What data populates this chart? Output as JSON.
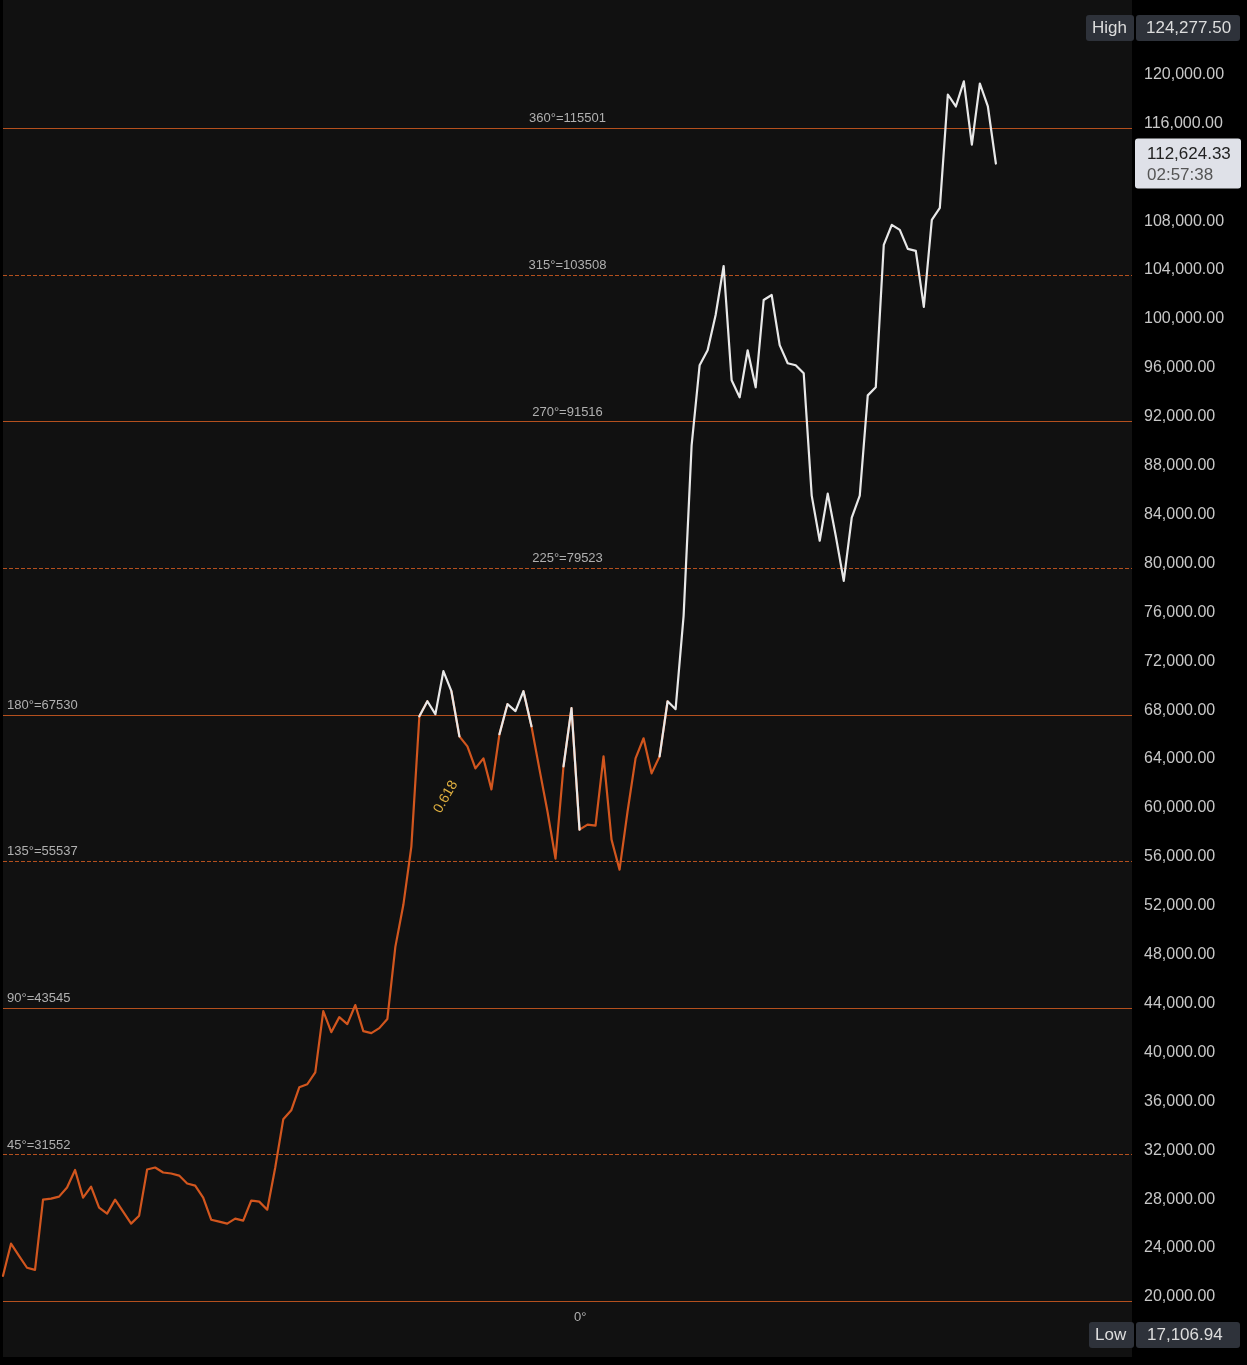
{
  "chart_data": {
    "type": "line",
    "categories": [
      null,
      null,
      null,
      null,
      null,
      null,
      null,
      null,
      null,
      null,
      null,
      null,
      null,
      null,
      null,
      null,
      null,
      null,
      null,
      null,
      null,
      null,
      null,
      null,
      null,
      null,
      null,
      null,
      null,
      null,
      null,
      null,
      null,
      null,
      null,
      null,
      null,
      null,
      null,
      null,
      null,
      null,
      null,
      null,
      null,
      null,
      null,
      null,
      null,
      null,
      null,
      null,
      null,
      null,
      null,
      null,
      null,
      null,
      null,
      null,
      null,
      null,
      null,
      null,
      null,
      null,
      null,
      null,
      null,
      null,
      null,
      null,
      null,
      null,
      null,
      null,
      null,
      null,
      null,
      null,
      null,
      null,
      null,
      null,
      null,
      null,
      null,
      null,
      null,
      null,
      null,
      null,
      null,
      null,
      null,
      null,
      null,
      null,
      null,
      null,
      null,
      null,
      null,
      null,
      null,
      null,
      null,
      null,
      null,
      null,
      null,
      null,
      null,
      null,
      null,
      null,
      null,
      null,
      null,
      null,
      null,
      null,
      null,
      null,
      null,
      null,
      null,
      null,
      null,
      null,
      null,
      null,
      null,
      null,
      null,
      null,
      null,
      null,
      null,
      null,
      null,
      null
    ],
    "series": [
      {
        "color": "#d2561e",
        "values": [
          21640,
          24270,
          23280,
          22300,
          22130,
          27870,
          27960,
          28120,
          28860,
          30300,
          28040,
          28940,
          27220,
          26730,
          27870,
          26890,
          25910,
          26560,
          30340,
          30500,
          30090,
          30010,
          29840,
          29190,
          29020,
          28040,
          26230,
          26070,
          25910,
          26320,
          26150,
          27790,
          27710,
          27050,
          30500,
          34440,
          35180,
          37060,
          37310,
          38290,
          43300,
          41570,
          42800,
          42230,
          43790,
          41660,
          41490,
          41900,
          42640,
          48550,
          51990,
          56750,
          67410,
          68640,
          null,
          null,
          69460,
          65770,
          64950,
          63150,
          63970,
          61430,
          65940,
          68400,
          null,
          69460,
          66590,
          63070,
          59620,
          55770,
          63310,
          68070,
          58140,
          58550,
          58470,
          64130,
          57320,
          54860,
          59620,
          63970,
          65610,
          62740,
          64130,
          68640,
          null,
          null,
          null,
          null,
          null,
          null,
          null,
          null,
          null,
          null,
          null,
          null,
          null,
          null,
          null,
          null,
          null,
          null,
          null,
          null,
          null,
          null,
          null,
          null,
          null,
          null,
          null,
          null,
          null,
          null,
          null,
          null,
          null,
          null,
          null,
          null,
          null,
          null,
          null,
          null,
          null,
          null,
          null,
          null,
          null,
          null,
          null,
          null,
          null,
          null,
          null,
          null,
          null,
          null,
          null,
          null,
          null,
          null
        ]
      },
      {
        "color": "#e8e8e8",
        "values": [
          null,
          null,
          null,
          null,
          null,
          null,
          null,
          null,
          null,
          null,
          null,
          null,
          null,
          null,
          null,
          null,
          null,
          null,
          null,
          null,
          null,
          null,
          null,
          null,
          null,
          null,
          null,
          null,
          null,
          null,
          null,
          null,
          null,
          null,
          null,
          null,
          null,
          null,
          null,
          null,
          null,
          null,
          null,
          null,
          null,
          null,
          null,
          null,
          null,
          null,
          null,
          null,
          67410,
          68640,
          67580,
          71100,
          69460,
          65770,
          null,
          null,
          null,
          null,
          65940,
          68400,
          67830,
          69460,
          66590,
          null,
          null,
          null,
          63310,
          68070,
          58140,
          null,
          null,
          null,
          null,
          null,
          null,
          null,
          null,
          null,
          64130,
          68640,
          67990,
          75620,
          89560,
          96120,
          97350,
          100230,
          104240,
          94890,
          93500,
          97350,
          94320,
          101460,
          101870,
          97770,
          96290,
          96120,
          95470,
          85460,
          81770,
          85620,
          82180,
          78490,
          83660,
          85460,
          93660,
          94320,
          105970,
          107610,
          107200,
          105640,
          105480,
          100900,
          108020,
          109000,
          118270,
          117290,
          119340,
          114170,
          119170,
          117290,
          112624.33,
          null,
          null,
          null,
          null,
          null,
          null,
          null,
          null,
          null,
          null,
          null,
          null,
          null,
          null,
          null,
          null,
          null
        ]
      }
    ],
    "ylim": [
      15000,
      126000
    ],
    "yticks": [
      {
        "value": 20000,
        "label": "20,000.00"
      },
      {
        "value": 24000,
        "label": "24,000.00"
      },
      {
        "value": 28000,
        "label": "28,000.00"
      },
      {
        "value": 32000,
        "label": "32,000.00"
      },
      {
        "value": 36000,
        "label": "36,000.00"
      },
      {
        "value": 40000,
        "label": "40,000.00"
      },
      {
        "value": 44000,
        "label": "44,000.00"
      },
      {
        "value": 48000,
        "label": "48,000.00"
      },
      {
        "value": 52000,
        "label": "52,000.00"
      },
      {
        "value": 56000,
        "label": "56,000.00"
      },
      {
        "value": 60000,
        "label": "60,000.00"
      },
      {
        "value": 64000,
        "label": "64,000.00"
      },
      {
        "value": 68000,
        "label": "68,000.00"
      },
      {
        "value": 72000,
        "label": "72,000.00"
      },
      {
        "value": 76000,
        "label": "76,000.00"
      },
      {
        "value": 80000,
        "label": "80,000.00"
      },
      {
        "value": 84000,
        "label": "84,000.00"
      },
      {
        "value": 88000,
        "label": "88,000.00"
      },
      {
        "value": 92000,
        "label": "92,000.00"
      },
      {
        "value": 96000,
        "label": "96,000.00"
      },
      {
        "value": 100000,
        "label": "100,000.00"
      },
      {
        "value": 104000,
        "label": "104,000.00"
      },
      {
        "value": 108000,
        "label": "108,000.00"
      },
      {
        "value": 116000,
        "label": "116,000.00"
      },
      {
        "value": 120000,
        "label": "120,000.00"
      }
    ],
    "ref_lines": [
      {
        "axis": "y",
        "value": 115501,
        "label": "360°=115501",
        "color": "#b4501e",
        "line_style": "solid"
      },
      {
        "axis": "y",
        "value": 103508,
        "label": "315°=103508",
        "color": "#b4501e",
        "line_style": "dashed"
      },
      {
        "axis": "y",
        "value": 91516,
        "label": "270°=91516",
        "color": "#b4501e",
        "line_style": "solid"
      },
      {
        "axis": "y",
        "value": 79523,
        "label": "225°=79523",
        "color": "#b4501e",
        "line_style": "dashed"
      },
      {
        "axis": "y",
        "value": 67530,
        "label": "180°=67530",
        "color": "#b4501e",
        "line_style": "solid"
      },
      {
        "axis": "y",
        "value": 55537,
        "label": "135°=55537",
        "color": "#b4501e",
        "line_style": "dashed"
      },
      {
        "axis": "y",
        "value": 43545,
        "label": "90°=43545",
        "color": "#b4501e",
        "line_style": "solid"
      },
      {
        "axis": "y",
        "value": 31552,
        "label": "45°=31552",
        "color": "#b4501e",
        "line_style": "dashed"
      },
      {
        "axis": "y",
        "value": 19560,
        "color": "#b4501e",
        "line_style": "solid"
      }
    ],
    "annotations": [
      "112,624.33",
      "02:57:38",
      "High",
      "124,277.50",
      "Low",
      "17,106.94",
      "0.618",
      "0°"
    ],
    "marker": "none",
    "line_style": "solid",
    "grid": false
  }
}
